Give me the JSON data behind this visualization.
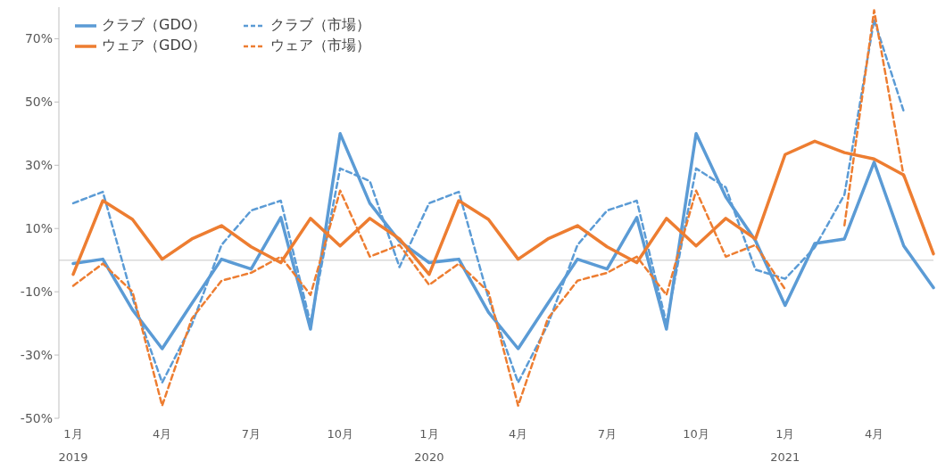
{
  "chart_data": {
    "type": "line",
    "categories": [
      "1月\n2019",
      null,
      null,
      "4月",
      null,
      null,
      "7月",
      null,
      null,
      "10月",
      null,
      null,
      "1月\n2020",
      null,
      null,
      "4月",
      null,
      null,
      "7月",
      null,
      null,
      "10月",
      null,
      null,
      "1月\n2021",
      null,
      null,
      "4月",
      null,
      null
    ],
    "series": [
      {
        "name": "クラブ（GDO）",
        "color": "#5b9bd5",
        "line_style": "solid",
        "values": [
          -1.1,
          0.3,
          -15.7,
          -28,
          -13.7,
          0.3,
          -2.8,
          13.5,
          -21.8,
          40,
          18,
          6,
          -0.8,
          0.3,
          -16.5,
          -28,
          -13.7,
          0.3,
          -2.8,
          13.5,
          -21.8,
          40,
          20,
          6.2,
          -14.3,
          5.3,
          6.7,
          31,
          4.5,
          -8.7
        ]
      },
      {
        "name": "クラブ（市場）",
        "color": "#5b9bd5",
        "line_style": "dashed",
        "values": [
          18,
          21.6,
          -12,
          -38.7,
          -20.4,
          4.8,
          15.7,
          18.8,
          -20,
          29,
          25,
          -2.2,
          18,
          21.6,
          -12,
          -38.7,
          -20.4,
          4.8,
          15.7,
          18.8,
          -20,
          29,
          23,
          -3,
          -5.9,
          4,
          20.7,
          76,
          47,
          null
        ]
      },
      {
        "name": "ウェア（GDO）",
        "color": "#ed7d31",
        "line_style": "solid",
        "values": [
          -4.5,
          18.8,
          12.9,
          0.3,
          6.7,
          10.9,
          4.2,
          -0.8,
          13.2,
          4.5,
          13.2,
          6.7,
          -4.5,
          18.8,
          12.9,
          0.3,
          6.7,
          10.9,
          4.2,
          -0.8,
          13.2,
          4.5,
          13.2,
          6.7,
          33.4,
          37.6,
          34,
          32,
          26.9,
          2
        ]
      },
      {
        "name": "ウェア（市場）",
        "color": "#ed7d31",
        "line_style": "dashed",
        "values": [
          -8.1,
          -1.1,
          -10,
          -46,
          -18.5,
          -6.5,
          -4,
          1.1,
          -11,
          22,
          1.1,
          4.8,
          -7.8,
          -1.1,
          -10,
          -46,
          -18.5,
          -6.5,
          -4,
          1.1,
          -11,
          22,
          1.1,
          4.8,
          -9.2,
          null,
          11,
          79,
          26.4,
          null
        ]
      }
    ],
    "ylim": [
      -50,
      80
    ],
    "yticks": [
      {
        "value": -50,
        "label": "-50%"
      },
      {
        "value": -30,
        "label": "-30%"
      },
      {
        "value": -10,
        "label": "-10%"
      },
      {
        "value": 10,
        "label": "10%"
      },
      {
        "value": 30,
        "label": "30%"
      },
      {
        "value": 50,
        "label": "50%"
      },
      {
        "value": 70,
        "label": "70%"
      }
    ],
    "ref_lines": [
      {
        "axis": "y",
        "value": 0,
        "color": "#d9d9d9"
      }
    ],
    "grid": false,
    "legend": "top left",
    "marker": "none"
  }
}
